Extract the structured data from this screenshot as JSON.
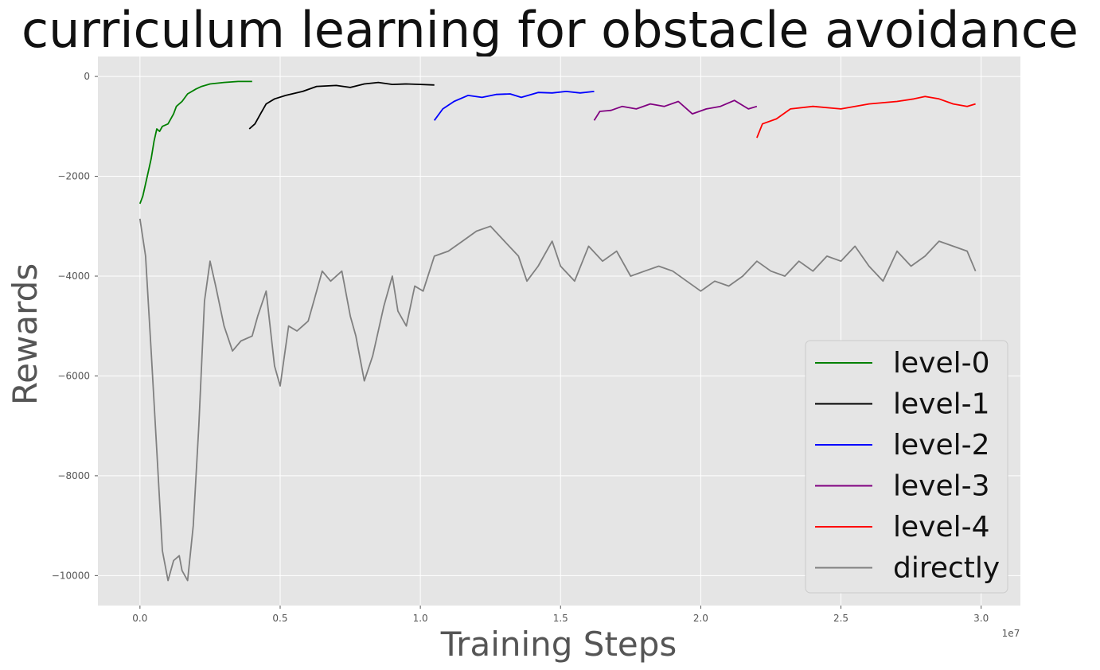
{
  "chart_data": {
    "type": "line",
    "title": "curriculum learning for obstacle avoidance",
    "xlabel": "Training Steps",
    "ylabel": "Rewards",
    "x_offset_label": "1e7",
    "xlim": [
      -0.15,
      3.14
    ],
    "ylim": [
      -10600,
      400
    ],
    "x_ticks": [
      0.0,
      0.5,
      1.0,
      1.5,
      2.0,
      2.5,
      3.0
    ],
    "x_tick_labels": [
      "0.0",
      "0.5",
      "1.0",
      "1.5",
      "2.0",
      "2.5",
      "3.0"
    ],
    "y_ticks": [
      0,
      -2000,
      -4000,
      -6000,
      -8000,
      -10000
    ],
    "y_tick_labels": [
      "0",
      "−2000",
      "−4000",
      "−6000",
      "−8000",
      "−10000"
    ],
    "grid": true,
    "legend_position": "lower-right",
    "colors": {
      "background": "#e5e5e5",
      "grid": "#ffffff",
      "level-0": "#008000",
      "level-1": "#000000",
      "level-2": "#0000ff",
      "level-3": "#800080",
      "level-4": "#ff0000",
      "directly": "#808080"
    },
    "series": [
      {
        "name": "level-0",
        "color": "#008000",
        "x": [
          0.0,
          0.01,
          0.02,
          0.03,
          0.04,
          0.05,
          0.06,
          0.07,
          0.08,
          0.1,
          0.12,
          0.13,
          0.15,
          0.17,
          0.2,
          0.22,
          0.25,
          0.3,
          0.35,
          0.4
        ],
        "y": [
          -2550,
          -2400,
          -2150,
          -1900,
          -1650,
          -1300,
          -1050,
          -1100,
          -1000,
          -950,
          -750,
          -600,
          -500,
          -350,
          -250,
          -200,
          -150,
          -120,
          -100,
          -100
        ]
      },
      {
        "name": "level-1",
        "color": "#000000",
        "x": [
          0.39,
          0.41,
          0.43,
          0.45,
          0.48,
          0.52,
          0.58,
          0.63,
          0.7,
          0.75,
          0.8,
          0.85,
          0.9,
          0.95,
          1.0,
          1.05
        ],
        "y": [
          -1050,
          -950,
          -750,
          -550,
          -450,
          -380,
          -300,
          -200,
          -180,
          -220,
          -150,
          -120,
          -160,
          -150,
          -160,
          -170
        ]
      },
      {
        "name": "level-2",
        "color": "#0000ff",
        "x": [
          1.05,
          1.08,
          1.12,
          1.17,
          1.22,
          1.27,
          1.32,
          1.36,
          1.42,
          1.47,
          1.52,
          1.57,
          1.62
        ],
        "y": [
          -880,
          -650,
          -500,
          -380,
          -420,
          -360,
          -350,
          -420,
          -320,
          -330,
          -300,
          -330,
          -300
        ]
      },
      {
        "name": "level-3",
        "color": "#800080",
        "x": [
          1.62,
          1.64,
          1.68,
          1.72,
          1.77,
          1.82,
          1.87,
          1.92,
          1.97,
          2.02,
          2.07,
          2.12,
          2.17,
          2.2
        ],
        "y": [
          -880,
          -700,
          -680,
          -600,
          -650,
          -550,
          -600,
          -500,
          -750,
          -650,
          -600,
          -480,
          -650,
          -600
        ]
      },
      {
        "name": "level-4",
        "color": "#ff0000",
        "x": [
          2.2,
          2.22,
          2.27,
          2.32,
          2.4,
          2.5,
          2.6,
          2.7,
          2.76,
          2.8,
          2.85,
          2.9,
          2.95,
          2.98
        ],
        "y": [
          -1230,
          -950,
          -850,
          -650,
          -600,
          -650,
          -550,
          -500,
          -450,
          -400,
          -450,
          -550,
          -600,
          -550
        ]
      },
      {
        "name": "directly",
        "color": "#808080",
        "x": [
          0.0,
          0.02,
          0.04,
          0.06,
          0.08,
          0.1,
          0.12,
          0.14,
          0.15,
          0.17,
          0.19,
          0.21,
          0.23,
          0.25,
          0.27,
          0.3,
          0.33,
          0.36,
          0.4,
          0.42,
          0.45,
          0.48,
          0.5,
          0.53,
          0.56,
          0.6,
          0.62,
          0.65,
          0.68,
          0.72,
          0.75,
          0.77,
          0.8,
          0.83,
          0.87,
          0.9,
          0.92,
          0.95,
          0.98,
          1.01,
          1.05,
          1.1,
          1.15,
          1.2,
          1.25,
          1.3,
          1.35,
          1.38,
          1.42,
          1.47,
          1.5,
          1.55,
          1.6,
          1.65,
          1.7,
          1.75,
          1.8,
          1.85,
          1.9,
          1.95,
          2.0,
          2.05,
          2.1,
          2.15,
          2.2,
          2.25,
          2.3,
          2.35,
          2.4,
          2.45,
          2.5,
          2.55,
          2.6,
          2.65,
          2.7,
          2.75,
          2.8,
          2.85,
          2.9,
          2.95,
          2.98
        ],
        "y": [
          -2850,
          -3600,
          -5500,
          -7500,
          -9500,
          -10100,
          -9700,
          -9600,
          -9900,
          -10100,
          -9000,
          -7000,
          -4500,
          -3700,
          -4200,
          -5000,
          -5500,
          -5300,
          -5200,
          -4800,
          -4300,
          -5800,
          -6200,
          -5000,
          -5100,
          -4900,
          -4500,
          -3900,
          -4100,
          -3900,
          -4800,
          -5200,
          -6100,
          -5600,
          -4600,
          -4000,
          -4700,
          -5000,
          -4200,
          -4300,
          -3600,
          -3500,
          -3300,
          -3100,
          -3000,
          -3300,
          -3600,
          -4100,
          -3800,
          -3300,
          -3800,
          -4100,
          -3400,
          -3700,
          -3500,
          -4000,
          -3900,
          -3800,
          -3900,
          -4100,
          -4300,
          -4100,
          -4200,
          -4000,
          -3700,
          -3900,
          -4000,
          -3700,
          -3900,
          -3600,
          -3700,
          -3400,
          -3800,
          -4100,
          -3500,
          -3800,
          -3600,
          -3300,
          -3400,
          -3500,
          -3900
        ]
      }
    ]
  }
}
